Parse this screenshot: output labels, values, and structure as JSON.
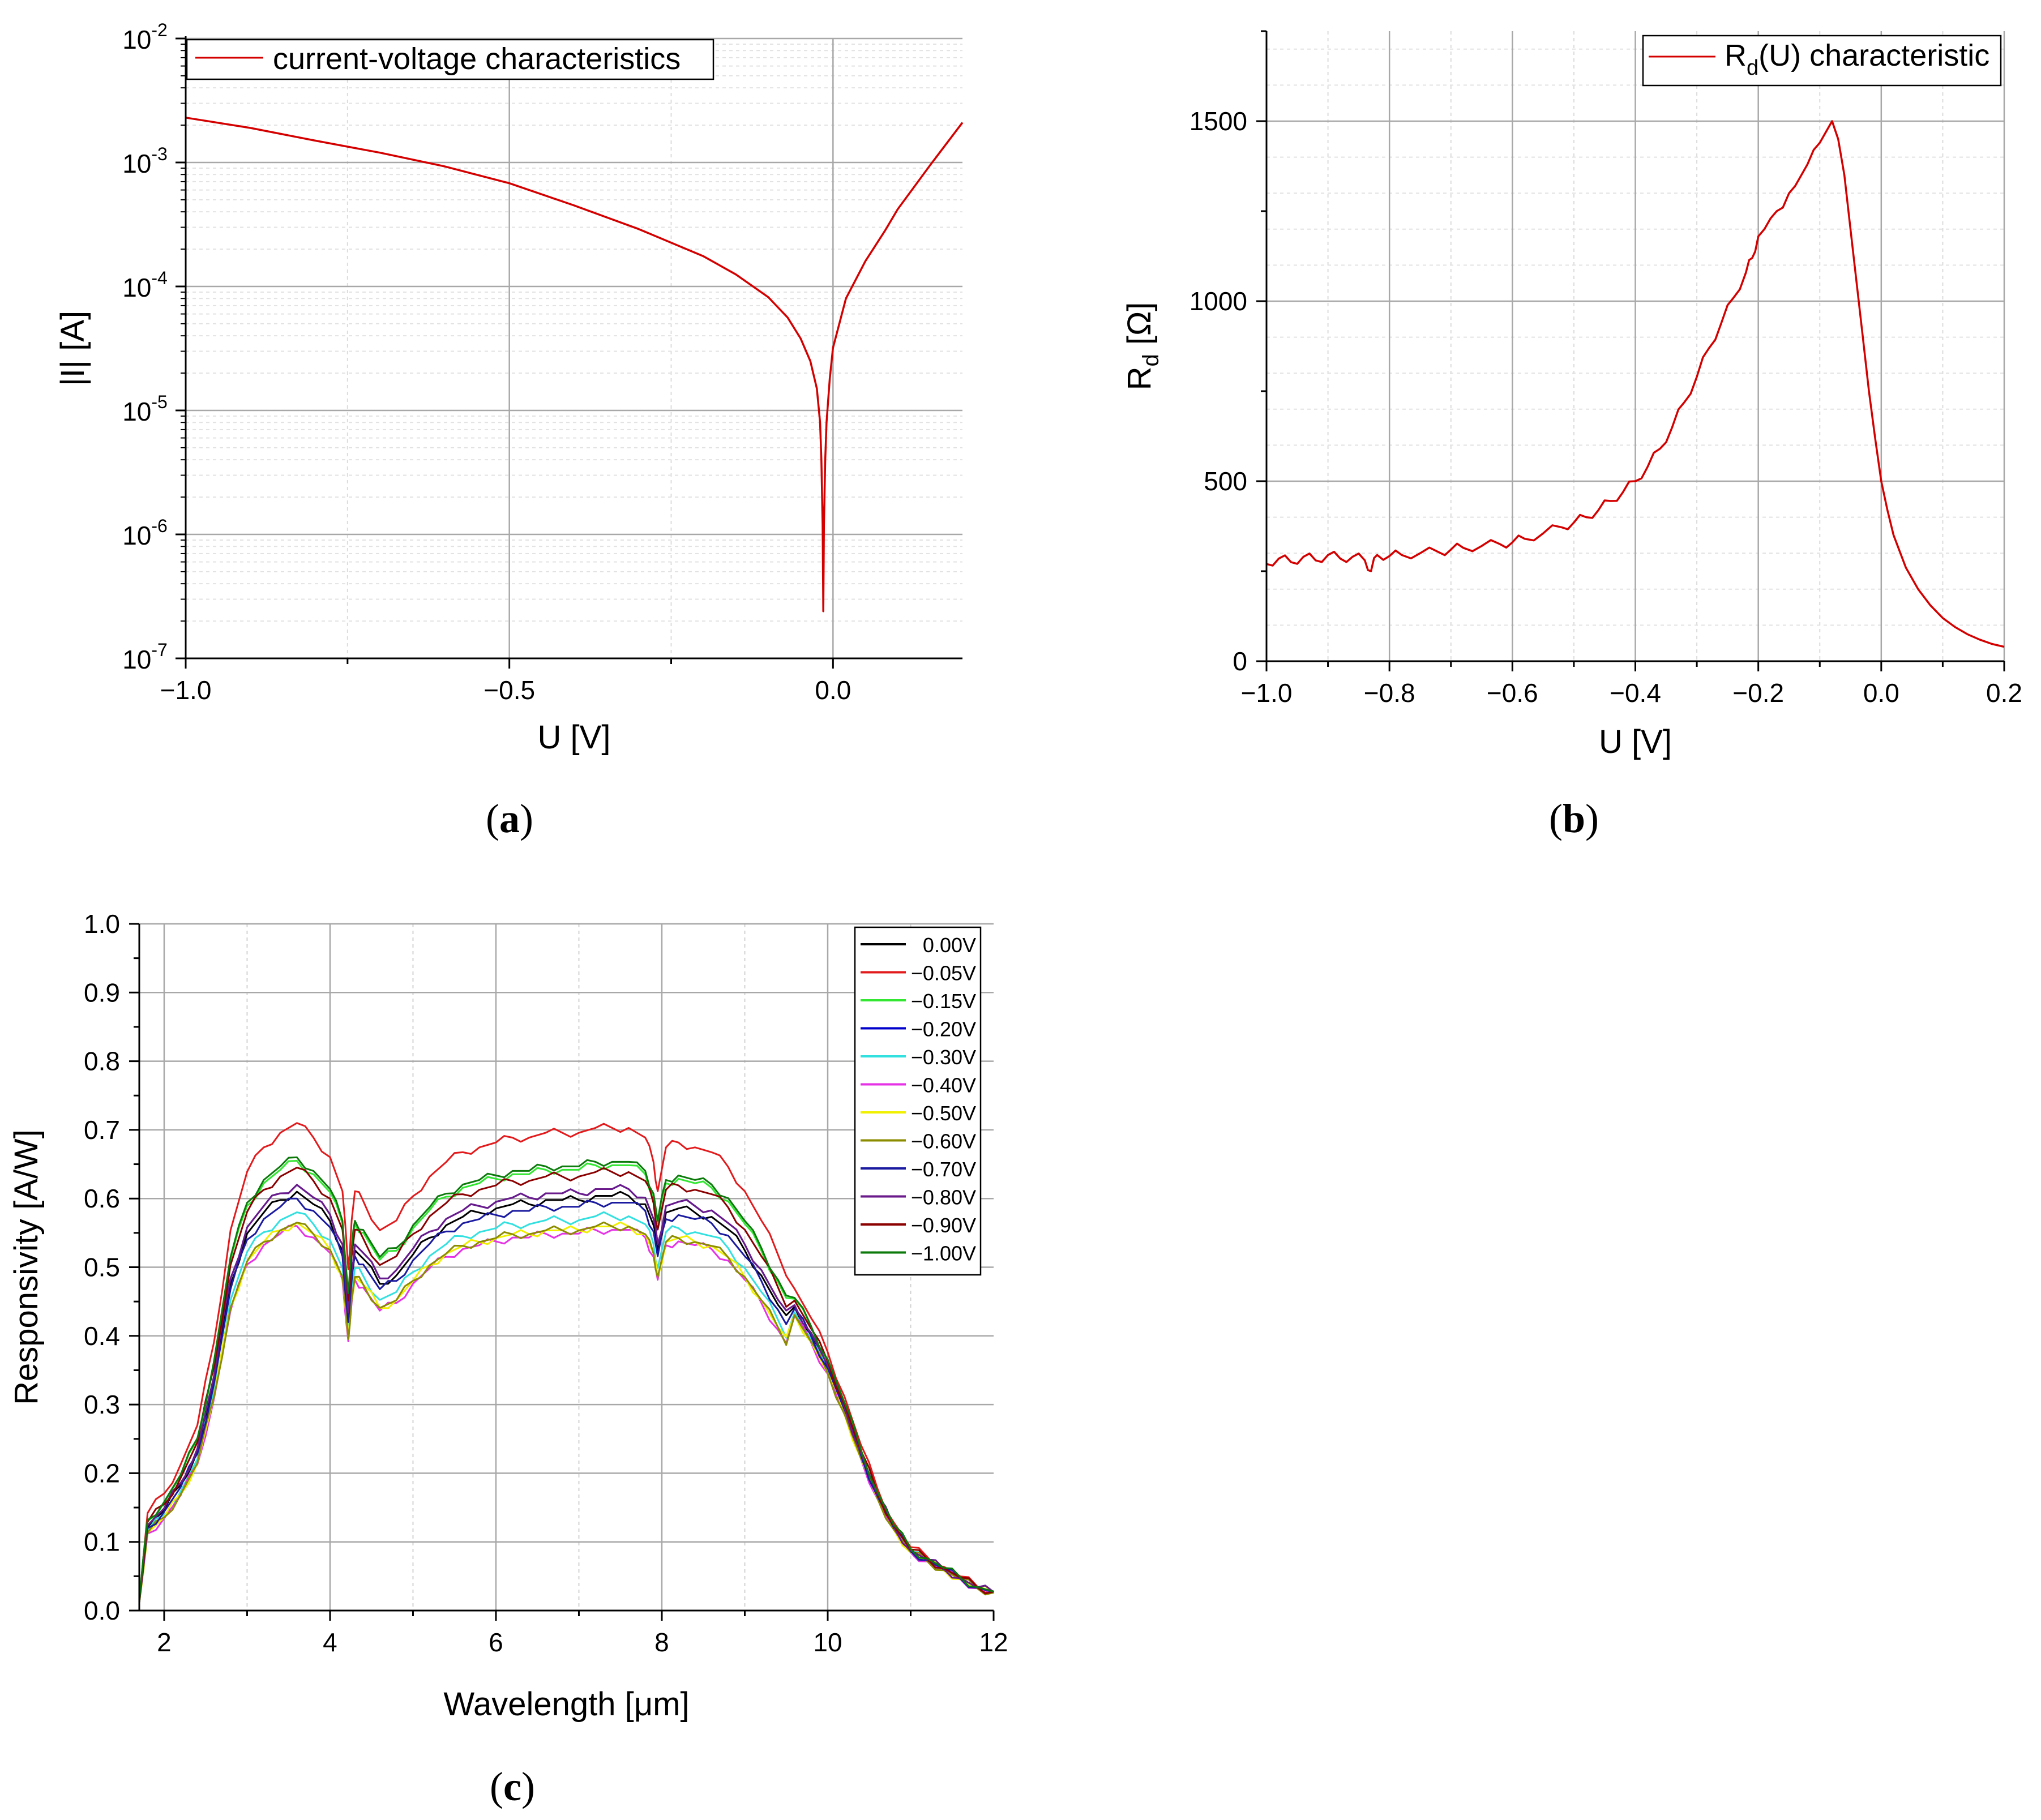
{
  "chart_data": [
    {
      "id": "a",
      "type": "line",
      "panel_label": "(a)",
      "panel_letter": "a",
      "xlabel": "U [V]",
      "ylabel": "|I| [A]",
      "yscale": "log",
      "xlim": [
        -1.0,
        0.2
      ],
      "ylim": [
        1e-07,
        0.01
      ],
      "xticks": [
        -1.0,
        -0.5,
        0.0
      ],
      "xtick_labels": [
        "−1.0",
        "−0.5",
        "0.0"
      ],
      "yticks": [
        1e-07,
        1e-06,
        1e-05,
        0.0001,
        0.001,
        0.01
      ],
      "ytick_labels": [
        {
          "base": "10",
          "exp": "-7"
        },
        {
          "base": "10",
          "exp": "-6"
        },
        {
          "base": "10",
          "exp": "-5"
        },
        {
          "base": "10",
          "exp": "-4"
        },
        {
          "base": "10",
          "exp": "-3"
        },
        {
          "base": "10",
          "exp": "-2"
        }
      ],
      "grid": true,
      "legend_position": "top-left",
      "series": [
        {
          "name": "current-voltage characteristics",
          "color": "#d40000",
          "x": [
            -1.0,
            -0.9,
            -0.8,
            -0.7,
            -0.6,
            -0.5,
            -0.4,
            -0.3,
            -0.2,
            -0.15,
            -0.1,
            -0.07,
            -0.05,
            -0.035,
            -0.025,
            -0.02,
            -0.018,
            -0.016,
            -0.015,
            -0.014,
            -0.012,
            -0.01,
            -0.005,
            0.0,
            0.02,
            0.05,
            0.08,
            0.1,
            0.15,
            0.2
          ],
          "y": [
            0.0023,
            0.0019,
            0.0015,
            0.0012,
            0.00093,
            0.00068,
            0.00045,
            0.00029,
            0.000175,
            0.000125,
            8.2e-05,
            5.6e-05,
            3.8e-05,
            2.5e-05,
            1.5e-05,
            8e-06,
            4e-06,
            1.2e-06,
            2.4e-07,
            1.2e-06,
            4e-06,
            8e-06,
            1.8e-05,
            3.2e-05,
            8e-05,
            0.00016,
            0.00028,
            0.00042,
            0.00095,
            0.0021
          ]
        }
      ]
    },
    {
      "id": "b",
      "type": "line",
      "panel_label": "(b)",
      "panel_letter": "b",
      "xlabel": "U [V]",
      "ylabel": {
        "main": "R",
        "sub": "d",
        "rest": " [Ω]"
      },
      "xlim": [
        -1.0,
        0.2
      ],
      "ylim": [
        0,
        1750
      ],
      "xticks": [
        -1.0,
        -0.8,
        -0.6,
        -0.4,
        -0.2,
        0.0,
        0.2
      ],
      "xtick_labels": [
        "−1.0",
        "−0.8",
        "−0.6",
        "−0.4",
        "−0.2",
        "0.0",
        "0.2"
      ],
      "yticks": [
        0,
        500,
        1000,
        1500
      ],
      "ytick_labels": [
        "0",
        "500",
        "1000",
        "1500"
      ],
      "grid": true,
      "legend_position": "top-right",
      "series": [
        {
          "name": {
            "main": "R",
            "sub": "d",
            "rest": "(U) characteristic"
          },
          "color": "#d40000",
          "x": [
            -1.0,
            -0.98,
            -0.96,
            -0.94,
            -0.92,
            -0.9,
            -0.88,
            -0.86,
            -0.84,
            -0.83,
            -0.82,
            -0.8,
            -0.78,
            -0.75,
            -0.72,
            -0.7,
            -0.68,
            -0.65,
            -0.62,
            -0.6,
            -0.58,
            -0.55,
            -0.52,
            -0.5,
            -0.48,
            -0.46,
            -0.44,
            -0.42,
            -0.4,
            -0.38,
            -0.36,
            -0.34,
            -0.32,
            -0.3,
            -0.28,
            -0.26,
            -0.24,
            -0.22,
            -0.21,
            -0.2,
            -0.19,
            -0.18,
            -0.17,
            -0.16,
            -0.15,
            -0.14,
            -0.13,
            -0.12,
            -0.11,
            -0.1,
            -0.09,
            -0.08,
            -0.07,
            -0.06,
            -0.05,
            -0.04,
            -0.03,
            -0.02,
            -0.01,
            0.0,
            0.01,
            0.02,
            0.04,
            0.06,
            0.08,
            0.1,
            0.12,
            0.14,
            0.16,
            0.18,
            0.2
          ],
          "y": [
            270,
            285,
            275,
            290,
            280,
            295,
            285,
            290,
            280,
            250,
            295,
            292,
            295,
            300,
            303,
            310,
            315,
            320,
            325,
            330,
            340,
            355,
            372,
            385,
            400,
            420,
            445,
            470,
            500,
            540,
            590,
            650,
            720,
            790,
            870,
            940,
            1010,
            1080,
            1120,
            1180,
            1200,
            1230,
            1250,
            1260,
            1300,
            1320,
            1350,
            1380,
            1420,
            1440,
            1470,
            1500,
            1450,
            1350,
            1200,
            1050,
            900,
            750,
            620,
            500,
            420,
            350,
            260,
            200,
            155,
            120,
            95,
            75,
            60,
            48,
            40
          ]
        }
      ]
    },
    {
      "id": "c",
      "type": "line",
      "panel_label": "(c)",
      "panel_letter": "c",
      "xlabel": "Wavelength [μm]",
      "ylabel": "Responsivity [A/W]",
      "xlim": [
        1.7,
        12
      ],
      "ylim": [
        0,
        1.0
      ],
      "xticks": [
        2,
        4,
        6,
        8,
        10,
        12
      ],
      "xtick_labels": [
        "2",
        "4",
        "6",
        "8",
        "10",
        "12"
      ],
      "yticks": [
        0.0,
        0.1,
        0.2,
        0.3,
        0.4,
        0.5,
        0.6,
        0.7,
        0.8,
        0.9,
        1.0
      ],
      "ytick_labels": [
        "0.0",
        "0.1",
        "0.2",
        "0.3",
        "0.4",
        "0.5",
        "0.6",
        "0.7",
        "0.8",
        "0.9",
        "1.0"
      ],
      "grid": true,
      "legend_position": "top-right",
      "x": [
        1.7,
        1.8,
        2.0,
        2.2,
        2.4,
        2.6,
        2.8,
        3.0,
        3.2,
        3.4,
        3.6,
        3.8,
        4.0,
        4.15,
        4.22,
        4.26,
        4.3,
        4.4,
        4.6,
        4.8,
        5.0,
        5.2,
        5.4,
        5.6,
        5.8,
        6.0,
        6.2,
        6.4,
        6.6,
        6.8,
        7.0,
        7.2,
        7.4,
        7.6,
        7.8,
        7.9,
        7.95,
        8.05,
        8.2,
        8.4,
        8.6,
        8.8,
        9.0,
        9.2,
        9.4,
        9.6,
        9.8,
        10.0,
        10.2,
        10.4,
        10.6,
        10.8,
        11.0,
        11.2,
        11.4,
        11.6,
        11.8,
        12.0
      ],
      "profile": [
        0.02,
        0.2,
        0.24,
        0.3,
        0.38,
        0.55,
        0.78,
        0.9,
        0.95,
        0.98,
        1.0,
        0.97,
        0.93,
        0.86,
        0.7,
        0.8,
        0.86,
        0.84,
        0.78,
        0.8,
        0.85,
        0.89,
        0.92,
        0.94,
        0.95,
        0.96,
        0.97,
        0.97,
        0.98,
        0.98,
        0.98,
        0.99,
        0.99,
        0.99,
        0.97,
        0.92,
        0.86,
        0.95,
        0.96,
        0.95,
        0.94,
        0.91,
        0.86,
        0.8,
        0.73,
        0.66,
        0.6,
        0.53,
        0.44,
        0.34,
        0.25,
        0.18,
        0.13,
        0.11,
        0.09,
        0.07,
        0.05,
        0.04
      ],
      "series": [
        {
          "name": "0.00V",
          "color": "#000000",
          "peak": 0.61
        },
        {
          "name": "−0.05V",
          "color": "#e31a1c",
          "peak": 0.71
        },
        {
          "name": "−0.15V",
          "color": "#32e632",
          "peak": 0.655
        },
        {
          "name": "−0.20V",
          "color": "#0000cc",
          "peak": 0.62
        },
        {
          "name": "−0.30V",
          "color": "#33e0e0",
          "peak": 0.58
        },
        {
          "name": "−0.40V",
          "color": "#e632e6",
          "peak": 0.56
        },
        {
          "name": "−0.50V",
          "color": "#f0f000",
          "peak": 0.565
        },
        {
          "name": "−0.60V",
          "color": "#8c8c00",
          "peak": 0.565
        },
        {
          "name": "−0.70V",
          "color": "#1a1aa0",
          "peak": 0.6
        },
        {
          "name": "−0.80V",
          "color": "#6a1a8a",
          "peak": 0.62
        },
        {
          "name": "−0.90V",
          "color": "#8b0000",
          "peak": 0.645
        },
        {
          "name": "−1.00V",
          "color": "#0b7a0b",
          "peak": 0.66
        }
      ]
    }
  ]
}
